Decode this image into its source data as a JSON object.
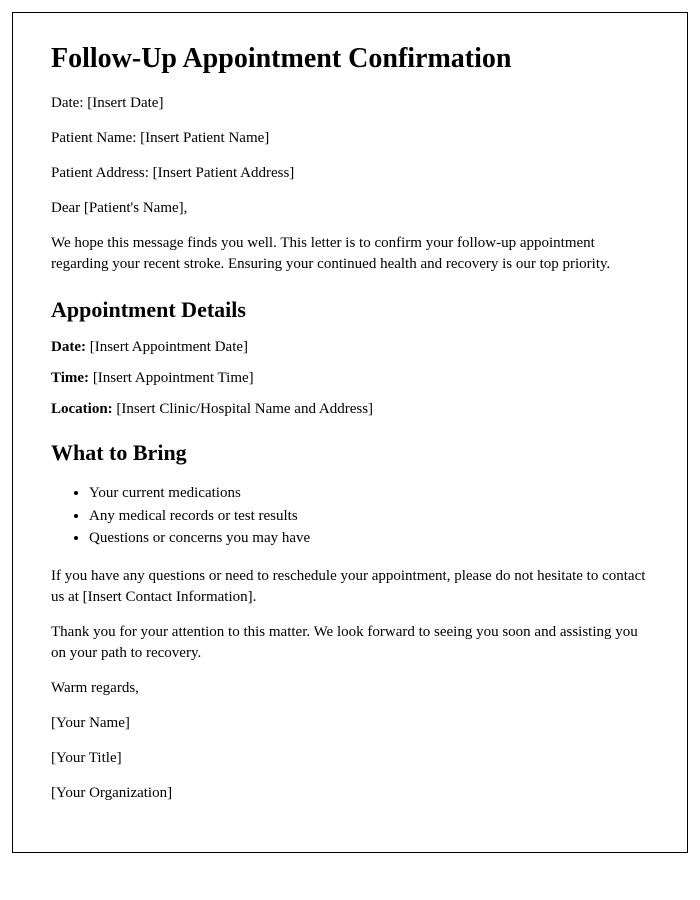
{
  "title": "Follow-Up Appointment Confirmation",
  "header": {
    "date": "Date: [Insert Date]",
    "patientName": "Patient Name: [Insert Patient Name]",
    "patientAddress": "Patient Address: [Insert Patient Address]"
  },
  "salutation": "Dear [Patient's Name],",
  "intro": "We hope this message finds you well. This letter is to confirm your follow-up appointment regarding your recent stroke. Ensuring your continued health and recovery is our top priority.",
  "sections": {
    "appointmentDetails": {
      "heading": "Appointment Details",
      "date": {
        "label": "Date:",
        "value": " [Insert Appointment Date]"
      },
      "time": {
        "label": "Time:",
        "value": " [Insert Appointment Time]"
      },
      "location": {
        "label": "Location:",
        "value": " [Insert Clinic/Hospital Name and Address]"
      }
    },
    "whatToBring": {
      "heading": "What to Bring",
      "items": [
        "Your current medications",
        "Any medical records or test results",
        "Questions or concerns you may have"
      ]
    }
  },
  "body": {
    "contact": "If you have any questions or need to reschedule your appointment, please do not hesitate to contact us at [Insert Contact Information].",
    "thanks": "Thank you for your attention to this matter. We look forward to seeing you soon and assisting you on your path to recovery."
  },
  "closing": {
    "regards": "Warm regards,",
    "name": "[Your Name]",
    "title": "[Your Title]",
    "org": "[Your Organization]"
  }
}
